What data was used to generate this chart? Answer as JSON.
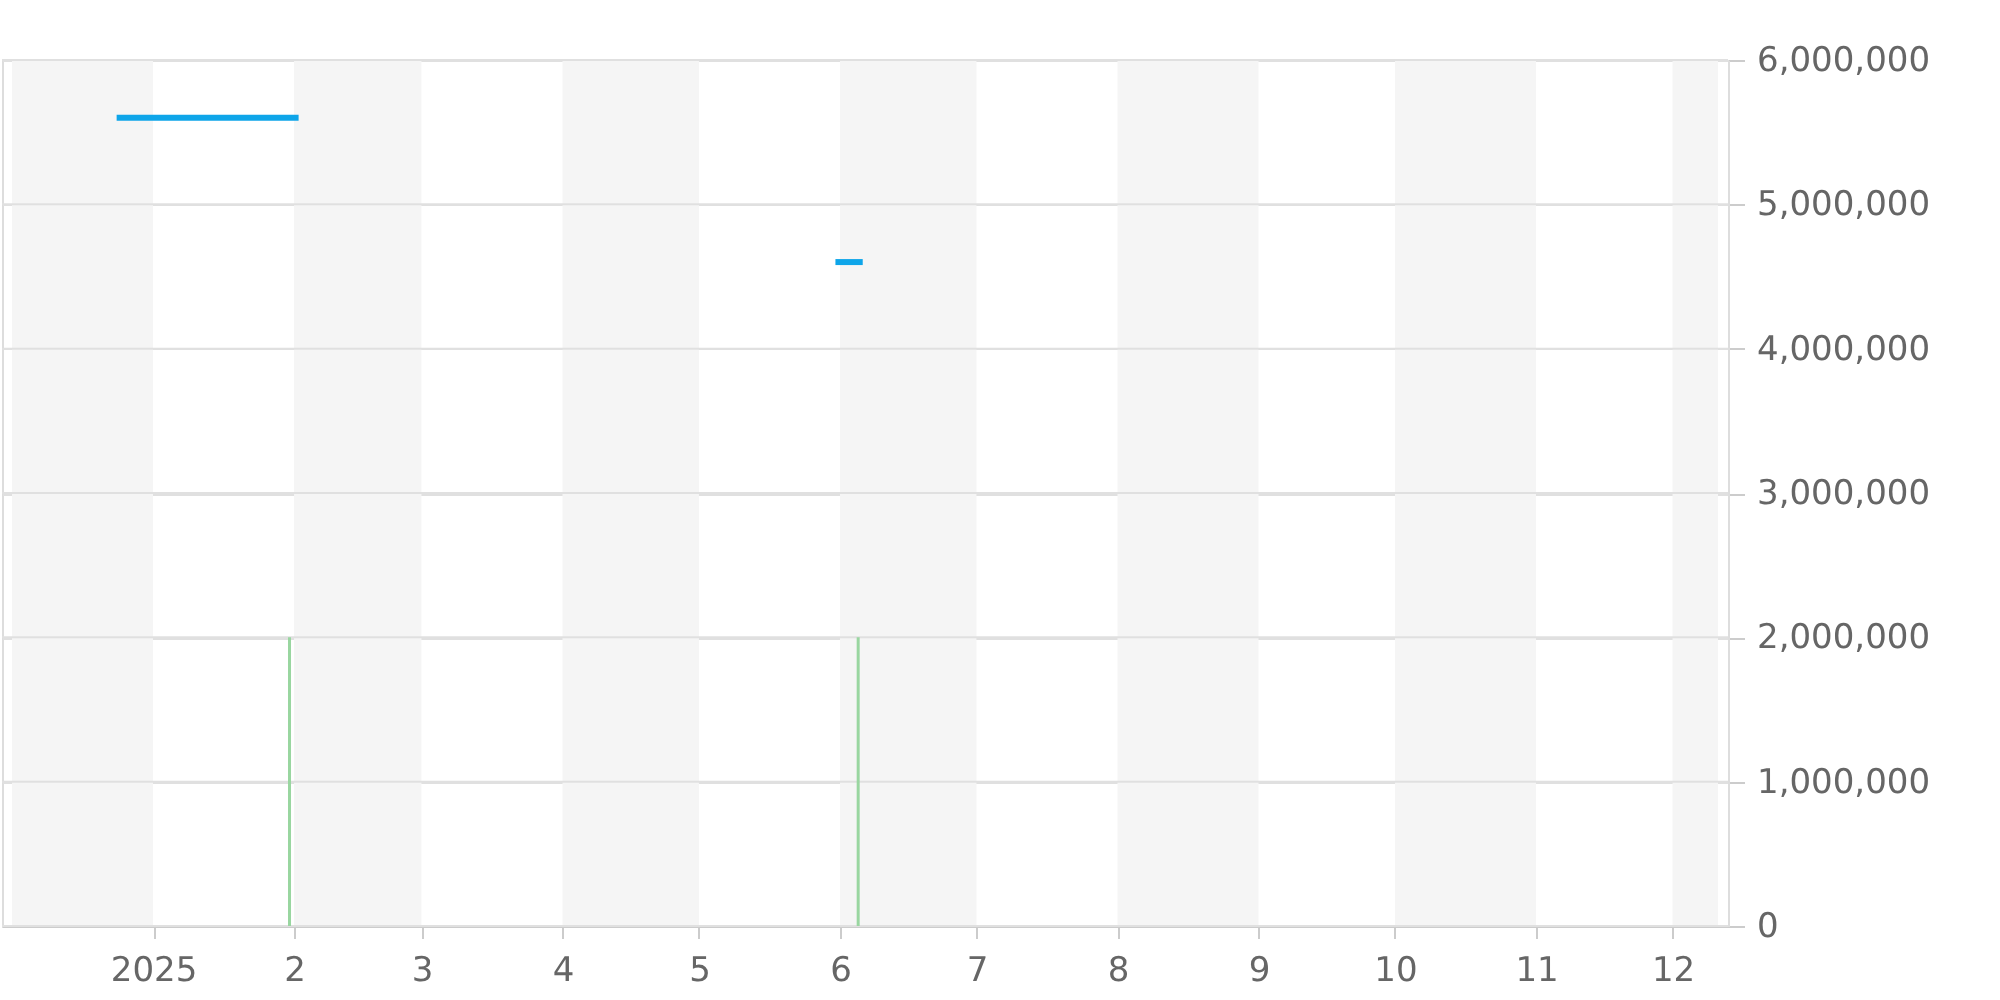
{
  "chart_data": {
    "type": "line",
    "xlim": [
      "2024-12-01",
      "2025-12-11"
    ],
    "xticks": [
      {
        "value": "2025-01-01",
        "label": "2025"
      },
      {
        "value": "2025-02-01",
        "label": "2"
      },
      {
        "value": "2025-03-01",
        "label": "3"
      },
      {
        "value": "2025-04-01",
        "label": "4"
      },
      {
        "value": "2025-05-01",
        "label": "5"
      },
      {
        "value": "2025-06-01",
        "label": "6"
      },
      {
        "value": "2025-07-01",
        "label": "7"
      },
      {
        "value": "2025-08-01",
        "label": "8"
      },
      {
        "value": "2025-09-01",
        "label": "9"
      },
      {
        "value": "2025-10-01",
        "label": "10"
      },
      {
        "value": "2025-11-01",
        "label": "11"
      },
      {
        "value": "2025-12-01",
        "label": "12"
      }
    ],
    "ylim": [
      0,
      6000000
    ],
    "yticks": [
      {
        "value": 0,
        "label": "0"
      },
      {
        "value": 1000000,
        "label": "1,000,000"
      },
      {
        "value": 2000000,
        "label": "2,000,000"
      },
      {
        "value": 3000000,
        "label": "3,000,000"
      },
      {
        "value": 4000000,
        "label": "4,000,000"
      },
      {
        "value": 5000000,
        "label": "5,000,000"
      },
      {
        "value": 6000000,
        "label": "6,000,000"
      }
    ],
    "grid": "y",
    "series": [
      {
        "color": "#0ea5e9",
        "x": [
          "2024-12-24",
          "2025-02-02",
          "2025-04-15",
          "2025-05-31",
          "2025-06-06"
        ],
        "values": [
          5600000,
          5600000,
          null,
          4600000,
          4600000
        ]
      },
      {
        "type": "bar",
        "color": "#99d6a0",
        "x": [
          "2025-01-31",
          "2025-06-05"
        ],
        "values": [
          2000000,
          2000000
        ]
      }
    ],
    "bands": [
      {
        "axis": "x",
        "from": "2024-12-01",
        "to": "2025-01-01",
        "color": "#f5f5f5"
      },
      {
        "axis": "x",
        "from": "2025-02-01",
        "to": "2025-03-01",
        "color": "#f5f5f5"
      },
      {
        "axis": "x",
        "from": "2025-04-01",
        "to": "2025-05-01",
        "color": "#f5f5f5"
      },
      {
        "axis": "x",
        "from": "2025-06-01",
        "to": "2025-07-01",
        "color": "#f5f5f5"
      },
      {
        "axis": "x",
        "from": "2025-08-01",
        "to": "2025-09-01",
        "color": "#f5f5f5"
      },
      {
        "axis": "x",
        "from": "2025-10-01",
        "to": "2025-11-01",
        "color": "#f5f5f5"
      },
      {
        "axis": "x",
        "from": "2025-12-01",
        "to": "2025-12-11",
        "color": "#f5f5f5"
      }
    ]
  }
}
